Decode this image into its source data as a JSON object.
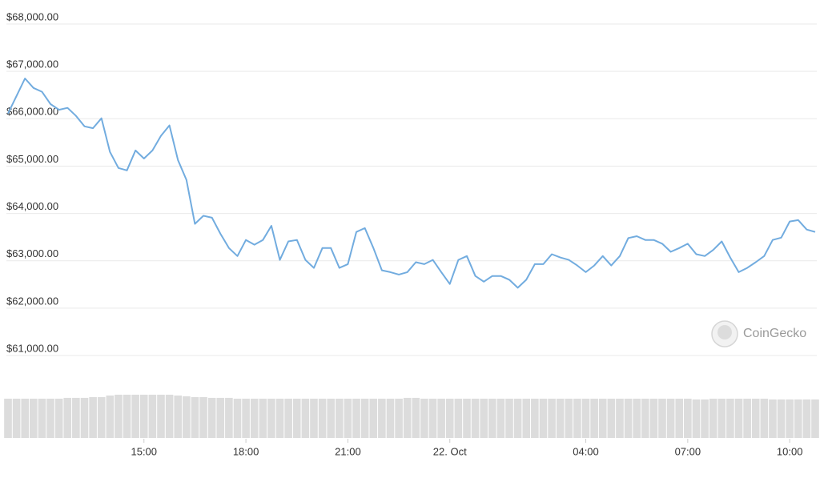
{
  "chart_data": [
    {
      "type": "line",
      "color": "#72acdf",
      "grid": true,
      "watermark": "CoinGecko",
      "xlim": [
        11,
        34.75
      ],
      "xticks": [
        {
          "value": 15,
          "label": "15:00"
        },
        {
          "value": 18,
          "label": "18:00"
        },
        {
          "value": 21,
          "label": "21:00"
        },
        {
          "value": 24,
          "label": "22. Oct"
        },
        {
          "value": 28,
          "label": "04:00"
        },
        {
          "value": 31,
          "label": "07:00"
        },
        {
          "value": 34,
          "label": "10:00"
        }
      ],
      "ylim": [
        60500,
        68000
      ],
      "yticks": [
        {
          "value": 61000,
          "label": "$61,000.00"
        },
        {
          "value": 62000,
          "label": "$62,000.00"
        },
        {
          "value": 63000,
          "label": "$63,000.00"
        },
        {
          "value": 64000,
          "label": "$64,000.00"
        },
        {
          "value": 65000,
          "label": "$65,000.00"
        },
        {
          "value": 66000,
          "label": "$66,000.00"
        },
        {
          "value": 67000,
          "label": "$67,000.00"
        },
        {
          "value": 68000,
          "label": "$68,000.00"
        }
      ],
      "x": [
        11,
        11.25,
        11.5,
        11.75,
        12,
        12.25,
        12.5,
        12.75,
        13,
        13.25,
        13.5,
        13.75,
        14,
        14.25,
        14.5,
        14.75,
        15,
        15.25,
        15.5,
        15.75,
        16,
        16.25,
        16.5,
        16.75,
        17,
        17.25,
        17.5,
        17.75,
        18,
        18.25,
        18.5,
        18.75,
        19,
        19.25,
        19.5,
        19.75,
        20,
        20.25,
        20.5,
        20.75,
        21,
        21.25,
        21.5,
        21.75,
        22,
        22.25,
        22.5,
        22.75,
        23,
        23.25,
        23.5,
        23.75,
        24,
        24.25,
        24.5,
        24.75,
        25,
        25.25,
        25.5,
        25.75,
        26,
        26.25,
        26.5,
        26.75,
        27,
        27.25,
        27.5,
        27.75,
        28,
        28.25,
        28.5,
        28.75,
        29,
        29.25,
        29.5,
        29.75,
        30,
        30.25,
        30.5,
        30.75,
        31,
        31.25,
        31.5,
        31.75,
        32,
        32.25,
        32.5,
        32.75,
        33,
        33.25,
        33.5,
        33.75,
        34,
        34.25,
        34.5,
        34.75
      ],
      "values": [
        66110,
        66480,
        66850,
        66650,
        66570,
        66310,
        66190,
        66230,
        66060,
        65840,
        65800,
        66010,
        65300,
        64960,
        64910,
        65330,
        65160,
        65330,
        65640,
        65860,
        65130,
        64710,
        63780,
        63950,
        63910,
        63570,
        63270,
        63100,
        63440,
        63340,
        63440,
        63740,
        63020,
        63410,
        63440,
        63020,
        62850,
        63270,
        63270,
        62850,
        62930,
        63610,
        63690,
        63270,
        62800,
        62760,
        62710,
        62760,
        62970,
        62930,
        63020,
        62760,
        62510,
        63020,
        63100,
        62680,
        62560,
        62680,
        62680,
        62600,
        62430,
        62600,
        62930,
        62930,
        63140,
        63070,
        63020,
        62900,
        62760,
        62900,
        63100,
        62900,
        63100,
        63480,
        63520,
        63440,
        63440,
        63360,
        63190,
        63270,
        63360,
        63140,
        63100,
        63230,
        63410,
        63070,
        62760,
        62850,
        62970,
        63100,
        63440,
        63490,
        63830,
        63860,
        63660,
        63610
      ]
    },
    {
      "type": "bar",
      "color": "#dcdcdc",
      "xlim": [
        11,
        34.75
      ],
      "ylim": [
        0,
        56
      ],
      "x": [
        11,
        11.25,
        11.5,
        11.75,
        12,
        12.25,
        12.5,
        12.75,
        13,
        13.25,
        13.5,
        13.75,
        14,
        14.25,
        14.5,
        14.75,
        15,
        15.25,
        15.5,
        15.75,
        16,
        16.25,
        16.5,
        16.75,
        17,
        17.25,
        17.5,
        17.75,
        18,
        18.25,
        18.5,
        18.75,
        19,
        19.25,
        19.5,
        19.75,
        20,
        20.25,
        20.5,
        20.75,
        21,
        21.25,
        21.5,
        21.75,
        22,
        22.25,
        22.5,
        22.75,
        23,
        23.25,
        23.5,
        23.75,
        24,
        24.25,
        24.5,
        24.75,
        25,
        25.25,
        25.5,
        25.75,
        26,
        26.25,
        26.5,
        26.75,
        27,
        27.25,
        27.5,
        27.75,
        28,
        28.25,
        28.5,
        28.75,
        29,
        29.25,
        29.5,
        29.75,
        30,
        30.25,
        30.5,
        30.75,
        31,
        31.25,
        31.5,
        31.75,
        32,
        32.25,
        32.5,
        32.75,
        33,
        33.25,
        33.5,
        33.75,
        34,
        34.25,
        34.5,
        34.75
      ],
      "values": [
        50,
        50,
        50,
        50,
        50,
        50,
        50,
        51,
        51,
        51,
        52,
        52,
        54,
        55,
        55,
        55,
        55,
        55,
        55,
        55,
        54,
        53,
        52,
        52,
        51,
        51,
        51,
        50,
        50,
        50,
        50,
        50,
        50,
        50,
        50,
        50,
        50,
        50,
        50,
        50,
        50,
        50,
        50,
        50,
        50,
        50,
        50,
        51,
        51,
        50,
        50,
        50,
        50,
        50,
        50,
        50,
        50,
        50,
        50,
        50,
        50,
        50,
        50,
        50,
        50,
        50,
        50,
        50,
        50,
        50,
        50,
        50,
        50,
        50,
        50,
        50,
        50,
        50,
        50,
        50,
        50,
        49,
        49,
        50,
        50,
        50,
        50,
        50,
        50,
        50,
        49,
        49,
        49,
        49,
        49,
        49
      ]
    }
  ]
}
